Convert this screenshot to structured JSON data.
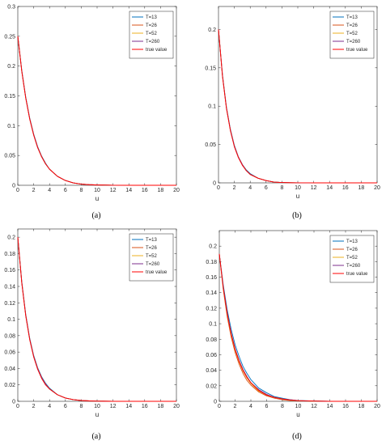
{
  "chart_data": [
    {
      "type": "line",
      "caption": "(a)",
      "xlabel": "u",
      "ylabel": "",
      "xlim": [
        0,
        20
      ],
      "ylim": [
        0,
        0.3
      ],
      "xticks": [
        "0",
        "2",
        "4",
        "6",
        "8",
        "10",
        "12",
        "14",
        "16",
        "18",
        "20"
      ],
      "yticks": [
        "0",
        "0.05",
        "0.1",
        "0.15",
        "0.2",
        "0.25",
        "0.3"
      ],
      "legend_position": "top-right",
      "x": [
        0,
        0.5,
        1,
        1.5,
        2,
        2.5,
        3,
        3.5,
        4,
        5,
        6,
        7,
        8,
        9,
        10,
        12,
        14,
        16,
        18,
        20
      ],
      "series": [
        {
          "name": "T=13",
          "color": "#0072bd",
          "values": [
            0.25,
            0.193,
            0.148,
            0.113,
            0.086,
            0.065,
            0.049,
            0.037,
            0.027,
            0.015,
            0.008,
            0.004,
            0.002,
            0.001,
            0.0005,
            0.0001,
            0,
            0,
            0,
            0
          ]
        },
        {
          "name": "T=26",
          "color": "#d95319",
          "values": [
            0.25,
            0.192,
            0.147,
            0.112,
            0.085,
            0.064,
            0.048,
            0.036,
            0.027,
            0.015,
            0.008,
            0.004,
            0.002,
            0.001,
            0.0005,
            0.0001,
            0,
            0,
            0,
            0
          ]
        },
        {
          "name": "T=52",
          "color": "#edb120",
          "values": [
            0.25,
            0.192,
            0.147,
            0.112,
            0.085,
            0.064,
            0.048,
            0.036,
            0.027,
            0.015,
            0.008,
            0.004,
            0.002,
            0.001,
            0.0005,
            0.0001,
            0,
            0,
            0,
            0
          ]
        },
        {
          "name": "T=260",
          "color": "#7e2f8e",
          "values": [
            0.25,
            0.192,
            0.147,
            0.112,
            0.085,
            0.064,
            0.048,
            0.036,
            0.027,
            0.015,
            0.008,
            0.004,
            0.002,
            0.001,
            0.0005,
            0.0001,
            0,
            0,
            0,
            0
          ]
        },
        {
          "name": "true value",
          "color": "#ff0000",
          "values": [
            0.25,
            0.191,
            0.146,
            0.111,
            0.084,
            0.063,
            0.048,
            0.036,
            0.027,
            0.015,
            0.008,
            0.004,
            0.002,
            0.001,
            0.0005,
            0.0001,
            0,
            0,
            0,
            0
          ]
        }
      ]
    },
    {
      "type": "line",
      "caption": "(b)",
      "xlabel": "u",
      "ylabel": "",
      "xlim": [
        0,
        20
      ],
      "ylim": [
        0,
        0.23
      ],
      "xticks": [
        "0",
        "2",
        "4",
        "6",
        "8",
        "10",
        "12",
        "14",
        "16",
        "18",
        "20"
      ],
      "yticks": [
        "0",
        "0.05",
        "0.1",
        "0.15",
        "0.2"
      ],
      "legend_position": "top-right",
      "x": [
        0,
        0.5,
        1,
        1.5,
        2,
        2.5,
        3,
        3.5,
        4,
        5,
        6,
        7,
        8,
        9,
        10,
        12,
        14,
        16,
        18,
        20
      ],
      "series": [
        {
          "name": "T=13",
          "color": "#0072bd",
          "values": [
            0.2,
            0.141,
            0.099,
            0.07,
            0.049,
            0.034,
            0.024,
            0.017,
            0.012,
            0.006,
            0.003,
            0.001,
            0.0005,
            0.0002,
            0.0001,
            0,
            0,
            0,
            0,
            0
          ]
        },
        {
          "name": "T=26",
          "color": "#d95319",
          "values": [
            0.2,
            0.14,
            0.098,
            0.069,
            0.048,
            0.034,
            0.024,
            0.016,
            0.011,
            0.006,
            0.003,
            0.001,
            0.0005,
            0.0002,
            0.0001,
            0,
            0,
            0,
            0,
            0
          ]
        },
        {
          "name": "T=52",
          "color": "#edb120",
          "values": [
            0.2,
            0.14,
            0.098,
            0.069,
            0.048,
            0.034,
            0.024,
            0.016,
            0.011,
            0.006,
            0.003,
            0.001,
            0.0005,
            0.0002,
            0.0001,
            0,
            0,
            0,
            0,
            0
          ]
        },
        {
          "name": "T=260",
          "color": "#7e2f8e",
          "values": [
            0.2,
            0.14,
            0.098,
            0.069,
            0.048,
            0.034,
            0.024,
            0.016,
            0.011,
            0.006,
            0.003,
            0.001,
            0.0005,
            0.0002,
            0.0001,
            0,
            0,
            0,
            0,
            0
          ]
        },
        {
          "name": "true value",
          "color": "#ff0000",
          "values": [
            0.2,
            0.139,
            0.097,
            0.068,
            0.047,
            0.033,
            0.023,
            0.016,
            0.011,
            0.006,
            0.003,
            0.001,
            0.0005,
            0.0002,
            0.0001,
            0,
            0,
            0,
            0,
            0
          ]
        }
      ]
    },
    {
      "type": "line",
      "caption": "(a)",
      "xlabel": "u",
      "ylabel": "",
      "xlim": [
        0,
        20
      ],
      "ylim": [
        0,
        0.21
      ],
      "xticks": [
        "0",
        "2",
        "4",
        "6",
        "8",
        "10",
        "12",
        "14",
        "16",
        "18",
        "20"
      ],
      "yticks": [
        "0",
        "0.02",
        "0.04",
        "0.06",
        "0.08",
        "0.1",
        "0.12",
        "0.14",
        "0.16",
        "0.18",
        "0.2"
      ],
      "legend_position": "top-right",
      "x": [
        0,
        0.5,
        1,
        1.5,
        2,
        2.5,
        3,
        3.5,
        4,
        5,
        6,
        7,
        8,
        9,
        10,
        12,
        14,
        16,
        18,
        20
      ],
      "series": [
        {
          "name": "T=13",
          "color": "#0072bd",
          "values": [
            0.2,
            0.146,
            0.106,
            0.077,
            0.056,
            0.041,
            0.03,
            0.022,
            0.016,
            0.008,
            0.004,
            0.002,
            0.001,
            0.0005,
            0.0002,
            0,
            0,
            0,
            0,
            0
          ]
        },
        {
          "name": "T=26",
          "color": "#d95319",
          "values": [
            0.2,
            0.145,
            0.105,
            0.076,
            0.055,
            0.04,
            0.029,
            0.021,
            0.015,
            0.008,
            0.004,
            0.002,
            0.001,
            0.0005,
            0.0002,
            0,
            0,
            0,
            0,
            0
          ]
        },
        {
          "name": "T=52",
          "color": "#edb120",
          "values": [
            0.2,
            0.145,
            0.105,
            0.076,
            0.055,
            0.04,
            0.029,
            0.021,
            0.015,
            0.008,
            0.004,
            0.002,
            0.001,
            0.0005,
            0.0002,
            0,
            0,
            0,
            0,
            0
          ]
        },
        {
          "name": "T=260",
          "color": "#7e2f8e",
          "values": [
            0.2,
            0.145,
            0.105,
            0.076,
            0.055,
            0.04,
            0.029,
            0.021,
            0.015,
            0.008,
            0.004,
            0.002,
            0.001,
            0.0005,
            0.0002,
            0,
            0,
            0,
            0,
            0
          ]
        },
        {
          "name": "true value",
          "color": "#ff0000",
          "values": [
            0.2,
            0.144,
            0.104,
            0.075,
            0.054,
            0.039,
            0.028,
            0.02,
            0.015,
            0.008,
            0.004,
            0.002,
            0.001,
            0.0005,
            0.0002,
            0,
            0,
            0,
            0,
            0
          ]
        }
      ]
    },
    {
      "type": "line",
      "caption": "(d)",
      "xlabel": "u",
      "ylabel": "",
      "xlim": [
        0,
        20
      ],
      "ylim": [
        0,
        0.22
      ],
      "xticks": [
        "0",
        "2",
        "4",
        "6",
        "8",
        "10",
        "12",
        "14",
        "16",
        "18",
        "20"
      ],
      "yticks": [
        "0",
        "0.02",
        "0.04",
        "0.06",
        "0.08",
        "0.1",
        "0.12",
        "0.14",
        "0.16",
        "0.18",
        "0.2"
      ],
      "legend_position": "top-right",
      "x": [
        0,
        0.5,
        1,
        1.5,
        2,
        2.5,
        3,
        3.5,
        4,
        5,
        6,
        7,
        8,
        9,
        10,
        12,
        14,
        16,
        18,
        20
      ],
      "series": [
        {
          "name": "T=13",
          "color": "#0072bd",
          "values": [
            0.19,
            0.15,
            0.118,
            0.093,
            0.073,
            0.058,
            0.045,
            0.036,
            0.028,
            0.017,
            0.011,
            0.006,
            0.004,
            0.002,
            0.001,
            0.0004,
            0.0001,
            0,
            0,
            0
          ]
        },
        {
          "name": "T=26",
          "color": "#d95319",
          "values": [
            0.19,
            0.144,
            0.109,
            0.083,
            0.063,
            0.048,
            0.036,
            0.027,
            0.021,
            0.012,
            0.007,
            0.004,
            0.002,
            0.001,
            0.0006,
            0.0002,
            0,
            0,
            0,
            0
          ]
        },
        {
          "name": "T=52",
          "color": "#edb120",
          "values": [
            0.19,
            0.146,
            0.112,
            0.086,
            0.066,
            0.051,
            0.039,
            0.03,
            0.023,
            0.013,
            0.008,
            0.005,
            0.003,
            0.0015,
            0.0008,
            0.0002,
            0,
            0,
            0,
            0
          ]
        },
        {
          "name": "T=260",
          "color": "#7e2f8e",
          "values": [
            0.19,
            0.147,
            0.114,
            0.088,
            0.068,
            0.053,
            0.041,
            0.032,
            0.024,
            0.015,
            0.009,
            0.005,
            0.003,
            0.002,
            0.001,
            0.0003,
            0,
            0,
            0,
            0
          ]
        },
        {
          "name": "true value",
          "color": "#ff0000",
          "values": [
            0.19,
            0.147,
            0.113,
            0.087,
            0.067,
            0.052,
            0.04,
            0.031,
            0.024,
            0.014,
            0.008,
            0.005,
            0.003,
            0.0016,
            0.0009,
            0.0003,
            0,
            0,
            0,
            0
          ]
        }
      ]
    }
  ]
}
